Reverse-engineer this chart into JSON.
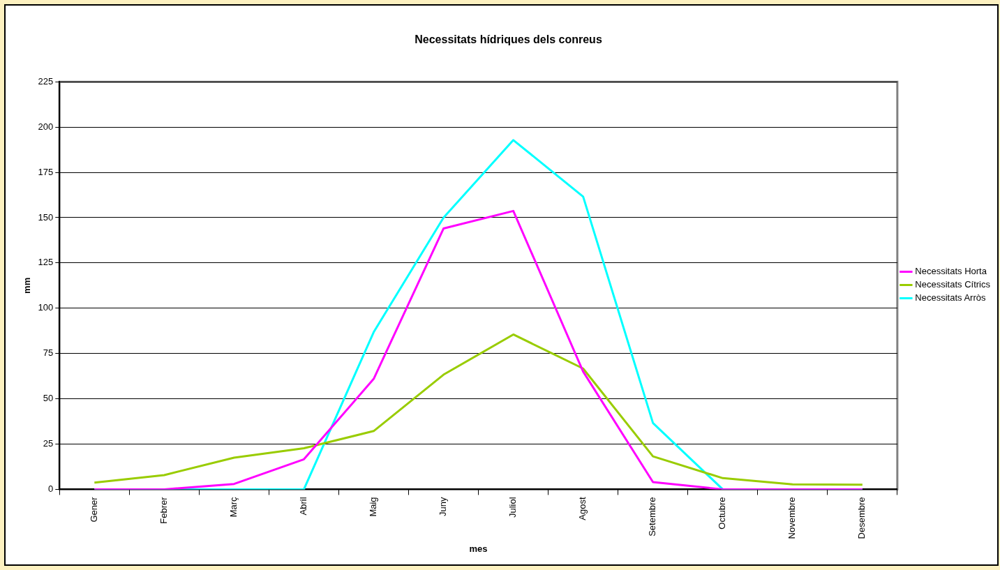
{
  "chart_data": {
    "type": "line",
    "title": "Necessitats hídriques dels conreus",
    "xlabel": "mes",
    "ylabel": "mm",
    "categories": [
      "Gener",
      "Febrer",
      "Març",
      "Abril",
      "Maig",
      "Juny",
      "Juliol",
      "Agost",
      "Setembre",
      "Octubre",
      "Novembre",
      "Desembre"
    ],
    "series": [
      {
        "name": "Necessitats Horta",
        "color": "#ff00ff",
        "values": [
          0,
          0,
          3,
          16.6,
          61,
          144,
          153.7,
          65,
          4,
          0,
          0,
          0
        ]
      },
      {
        "name": "Necessitats Cítrics",
        "color": "#99cc00",
        "values": [
          3.7,
          7.9,
          17.5,
          22.7,
          32.2,
          63.3,
          85.5,
          66.7,
          18.2,
          6.2,
          2.8,
          2.6
        ]
      },
      {
        "name": "Necessitats Arròs",
        "color": "#00ffff",
        "values": [
          0,
          0,
          0,
          0,
          86.8,
          150,
          192.8,
          161.6,
          36.6,
          0,
          0,
          0
        ]
      }
    ],
    "ylim": [
      0,
      225
    ],
    "yticks": [
      0,
      25,
      50,
      75,
      100,
      125,
      150,
      175,
      200,
      225
    ],
    "grid": "y",
    "legend": "right",
    "marker": "none",
    "line_style": "solid"
  }
}
